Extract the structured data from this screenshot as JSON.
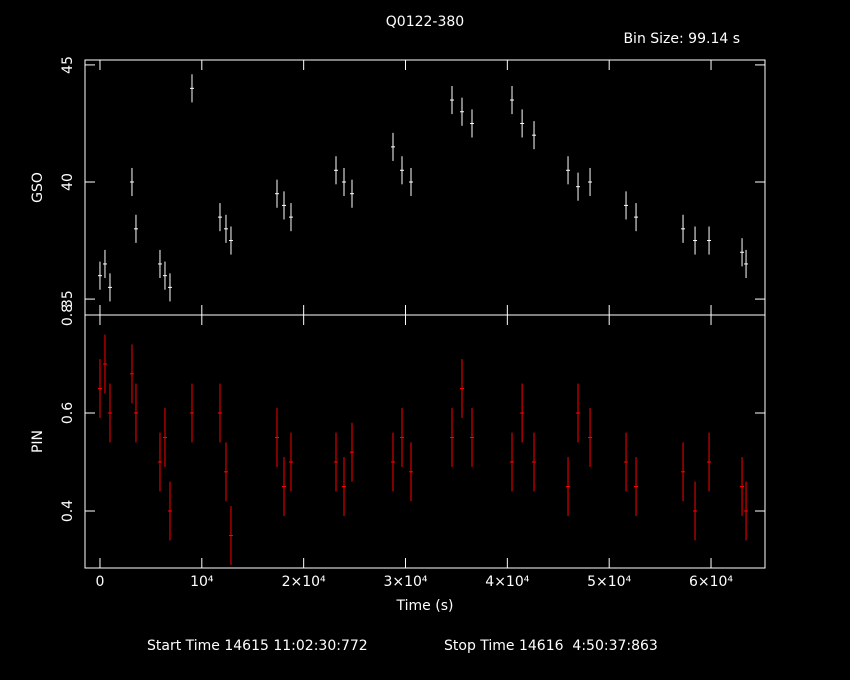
{
  "chart_data": [
    {
      "type": "errorbar",
      "title": "Q0122-380",
      "subtitle": "Bin Size: 99.14 s",
      "ylabel": "GSO",
      "color": "#ffffff",
      "x": [
        0,
        491,
        982,
        3142,
        3535,
        5892,
        6383,
        6874,
        9035,
        11784,
        12373,
        12864,
        17382,
        18069,
        18756,
        23176,
        23961,
        24747,
        28773,
        29657,
        30541,
        34567,
        35549,
        36531,
        40459,
        41451,
        42620,
        45959,
        46941,
        48120,
        51655,
        52637,
        57252,
        58431,
        59806,
        63046,
        63439
      ],
      "values": [
        36,
        36.5,
        35.5,
        40,
        38,
        36.5,
        36,
        35.5,
        44,
        38.5,
        38,
        37.5,
        39.5,
        39,
        38.5,
        40.5,
        40,
        39.5,
        41.5,
        40.5,
        40,
        43.5,
        43,
        42.5,
        43.5,
        42.5,
        42,
        40.5,
        39.8,
        40,
        39,
        38.5,
        38,
        37.5,
        37.5,
        37,
        36.5
      ],
      "error": 0.6,
      "xlim": [
        -1470,
        65300
      ],
      "xticks": [
        0,
        10000,
        20000,
        30000,
        40000,
        50000,
        60000
      ],
      "ylim": [
        34.32,
        45.21
      ],
      "yticks": [
        35,
        40,
        45
      ]
    },
    {
      "type": "errorbar",
      "ylabel": "PIN",
      "xlabel": "Time (s)",
      "start": "Start Time 14615 11:02:30:772",
      "stop": "Stop Time 14616  4:50:37:863",
      "color": "#ff0000",
      "x": [
        0,
        491,
        982,
        3142,
        3535,
        5892,
        6383,
        6874,
        9035,
        11784,
        12373,
        12864,
        17382,
        18069,
        18756,
        23176,
        23961,
        24747,
        28773,
        29657,
        30541,
        34567,
        35549,
        36531,
        40459,
        41451,
        42620,
        45959,
        46941,
        48120,
        51655,
        52637,
        57252,
        58431,
        59806,
        63046,
        63439
      ],
      "values": [
        0.65,
        0.7,
        0.6,
        0.68,
        0.6,
        0.5,
        0.55,
        0.4,
        0.6,
        0.6,
        0.48,
        0.35,
        0.55,
        0.45,
        0.5,
        0.5,
        0.45,
        0.52,
        0.5,
        0.55,
        0.48,
        0.55,
        0.65,
        0.55,
        0.5,
        0.6,
        0.5,
        0.45,
        0.6,
        0.55,
        0.5,
        0.45,
        0.48,
        0.4,
        0.5,
        0.45,
        0.4
      ],
      "error": 0.06,
      "xlim": [
        -1470,
        65300
      ],
      "xticks": [
        0,
        {
          "value": 10000,
          "label": "10⁴"
        },
        {
          "value": 20000,
          "label": "2×10⁴"
        },
        {
          "value": 30000,
          "label": "3×10⁴"
        },
        {
          "value": 40000,
          "label": "4×10⁴"
        },
        {
          "value": 50000,
          "label": "5×10⁴"
        },
        {
          "value": 60000,
          "label": "6×10⁴"
        }
      ],
      "ylim": [
        0.2837,
        0.8
      ],
      "yticks": [
        0.4,
        0.6,
        0.8
      ]
    }
  ]
}
